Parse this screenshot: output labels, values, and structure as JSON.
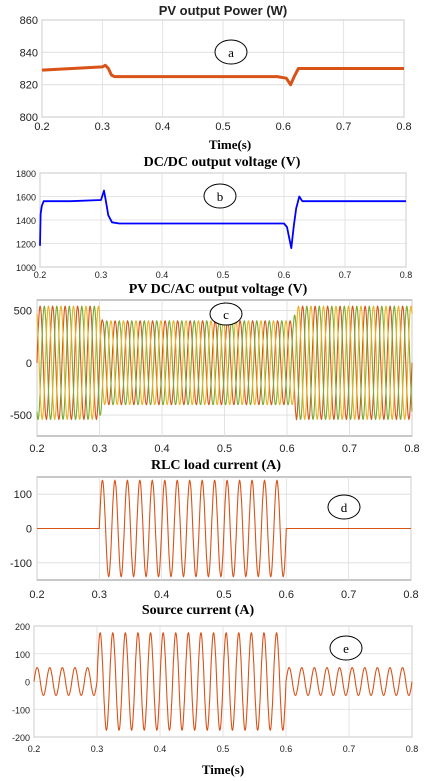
{
  "chart_data": [
    {
      "id": "pv-power",
      "type": "line",
      "title": "PV output Power (W)",
      "annotation": "a",
      "xlabel": "Time(s)",
      "xlim": [
        0.2,
        0.8
      ],
      "ylim": [
        800,
        860
      ],
      "xticks": [
        "0.2",
        "0.3",
        "0.4",
        "0.5",
        "0.6",
        "0.7",
        "0.8"
      ],
      "yticks": [
        "800",
        "820",
        "840",
        "860"
      ],
      "grid": true,
      "series": [
        {
          "color": "#d95319",
          "x": [
            0.2,
            0.25,
            0.3,
            0.305,
            0.31,
            0.315,
            0.32,
            0.35,
            0.4,
            0.45,
            0.5,
            0.55,
            0.59,
            0.605,
            0.612,
            0.618,
            0.625,
            0.63,
            0.65,
            0.7,
            0.75,
            0.8
          ],
          "y": [
            829,
            830,
            831,
            832,
            830,
            826,
            825,
            825,
            825,
            825,
            825,
            825,
            825,
            824,
            820,
            825,
            830,
            830,
            830,
            830,
            830,
            830
          ]
        }
      ]
    },
    {
      "id": "dcdc-voltage",
      "type": "line",
      "title": "DC/DC output voltage (V)",
      "annotation": "b",
      "xlim": [
        0.2,
        0.8
      ],
      "ylim": [
        1000,
        1800
      ],
      "xticks": [
        "0.2",
        "0.3",
        "0.4",
        "0.5",
        "0.6",
        "0.7",
        "0.8"
      ],
      "yticks": [
        "1000",
        "1200",
        "1400",
        "1600",
        "1800"
      ],
      "grid": true,
      "series": [
        {
          "color": "#0000ff",
          "x": [
            0.2,
            0.201,
            0.203,
            0.206,
            0.21,
            0.25,
            0.3,
            0.305,
            0.308,
            0.312,
            0.318,
            0.33,
            0.4,
            0.5,
            0.6,
            0.605,
            0.608,
            0.612,
            0.616,
            0.62,
            0.625,
            0.63,
            0.65,
            0.7,
            0.75,
            0.8
          ],
          "y": [
            1180,
            1450,
            1520,
            1560,
            1560,
            1560,
            1570,
            1650,
            1560,
            1440,
            1380,
            1370,
            1370,
            1370,
            1370,
            1340,
            1260,
            1160,
            1350,
            1500,
            1600,
            1560,
            1560,
            1560,
            1560,
            1560
          ]
        }
      ]
    },
    {
      "id": "dcac-voltage",
      "type": "line",
      "title": "PV DC/AC output voltage (V)",
      "annotation": "c",
      "xlim": [
        0.2,
        0.8
      ],
      "ylim": [
        -700,
        600
      ],
      "xticks": [
        "0.2",
        "0.3",
        "0.4",
        "0.5",
        "0.6",
        "0.7",
        "0.8"
      ],
      "yticks": [
        "-500",
        "0",
        "500"
      ],
      "grid": true,
      "waveform": {
        "kind": "three-phase",
        "frequency_hz": 50,
        "colors": [
          "#d95319",
          "#77ac30",
          "#edb120"
        ],
        "envelope": {
          "t": [
            0.2,
            0.3,
            0.305,
            0.61,
            0.615,
            0.8
          ],
          "amplitude": [
            540,
            540,
            400,
            400,
            540,
            540
          ]
        }
      }
    },
    {
      "id": "rlc-current",
      "type": "line",
      "title": "RLC load current (A)",
      "annotation": "d",
      "xlim": [
        0.2,
        0.8
      ],
      "ylim": [
        -150,
        150
      ],
      "xticks": [
        "0.2",
        "0.3",
        "0.4",
        "0.5",
        "0.6",
        "0.7",
        "0.8"
      ],
      "yticks": [
        "-100",
        "0",
        "100"
      ],
      "grid": true,
      "waveform": {
        "kind": "single-phase",
        "frequency_hz": 50,
        "colors": [
          "#d95319"
        ],
        "envelope": {
          "t": [
            0.2,
            0.3,
            0.3,
            0.6,
            0.6,
            0.8
          ],
          "amplitude": [
            0,
            0,
            140,
            140,
            0,
            0
          ]
        }
      }
    },
    {
      "id": "source-current",
      "type": "line",
      "title": "Source current (A)",
      "annotation": "e",
      "xlabel": "Time(s)",
      "xlim": [
        0.2,
        0.8
      ],
      "ylim": [
        -200,
        200
      ],
      "xticks": [
        "0.2",
        "0.3",
        "0.4",
        "0.5",
        "0.6",
        "0.7",
        "0.8"
      ],
      "yticks": [
        "-200",
        "-100",
        "0",
        "100",
        "200"
      ],
      "grid": true,
      "waveform": {
        "kind": "single-phase",
        "frequency_hz": 50,
        "colors": [
          "#d95319"
        ],
        "envelope": {
          "t": [
            0.2,
            0.3,
            0.3,
            0.6,
            0.6,
            0.8
          ],
          "amplitude": [
            50,
            50,
            175,
            175,
            50,
            50
          ]
        }
      }
    }
  ]
}
